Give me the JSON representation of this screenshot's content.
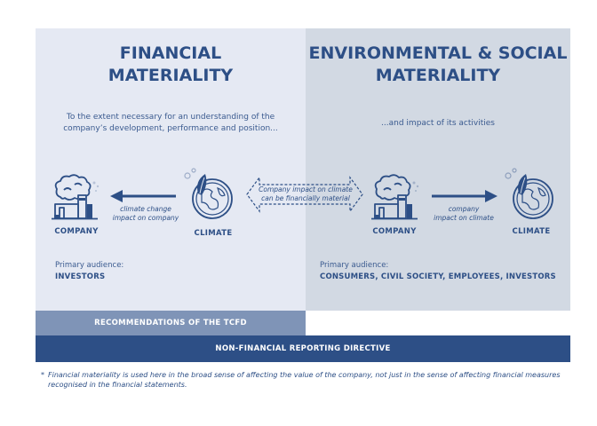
{
  "financial": {
    "title_line1": "FINANCIAL",
    "title_line2": "MATERIALITY",
    "description": "To the extent necessary for an understanding of the company’s development, performance and position...",
    "company_label": "COMPANY",
    "climate_label": "CLIMATE",
    "arrow_caption_line1": "climate change",
    "arrow_caption_line2": "impact on company",
    "audience_label": "Primary audience:",
    "audience_value": "INVESTORS"
  },
  "bridge": {
    "caption_line1": "Company impact on climate",
    "caption_line2": "can be financially material"
  },
  "environmental": {
    "title_line1": "ENVIRONMENTAL & SOCIAL",
    "title_line2": "MATERIALITY",
    "description": "...and impact of its activities",
    "company_label": "COMPANY",
    "climate_label": "CLIMATE",
    "arrow_caption_line1": "company",
    "arrow_caption_line2": "impact on climate",
    "audience_label": "Primary audience:",
    "audience_value": "CONSUMERS, CIVIL SOCIETY, EMPLOYEES, INVESTORS"
  },
  "bars": {
    "tcfd": "RECOMMENDATIONS OF THE TCFD",
    "nfrd": "NON-FINANCIAL REPORTING DIRECTIVE"
  },
  "footnote": {
    "marker": "*",
    "text": "Financial materiality is used here in the broad sense of affecting the value of the company, not just in the sense of affecting financial measures recognised in the financial statements."
  },
  "icons": {
    "company": "factory-smoke-icon",
    "climate": "leaf-globe-icon"
  },
  "colors": {
    "primary": "#2d4f86",
    "left_panel": "#e5e9f3",
    "right_panel": "#d2d9e3",
    "tcfd_bar": "#7f94b7"
  }
}
